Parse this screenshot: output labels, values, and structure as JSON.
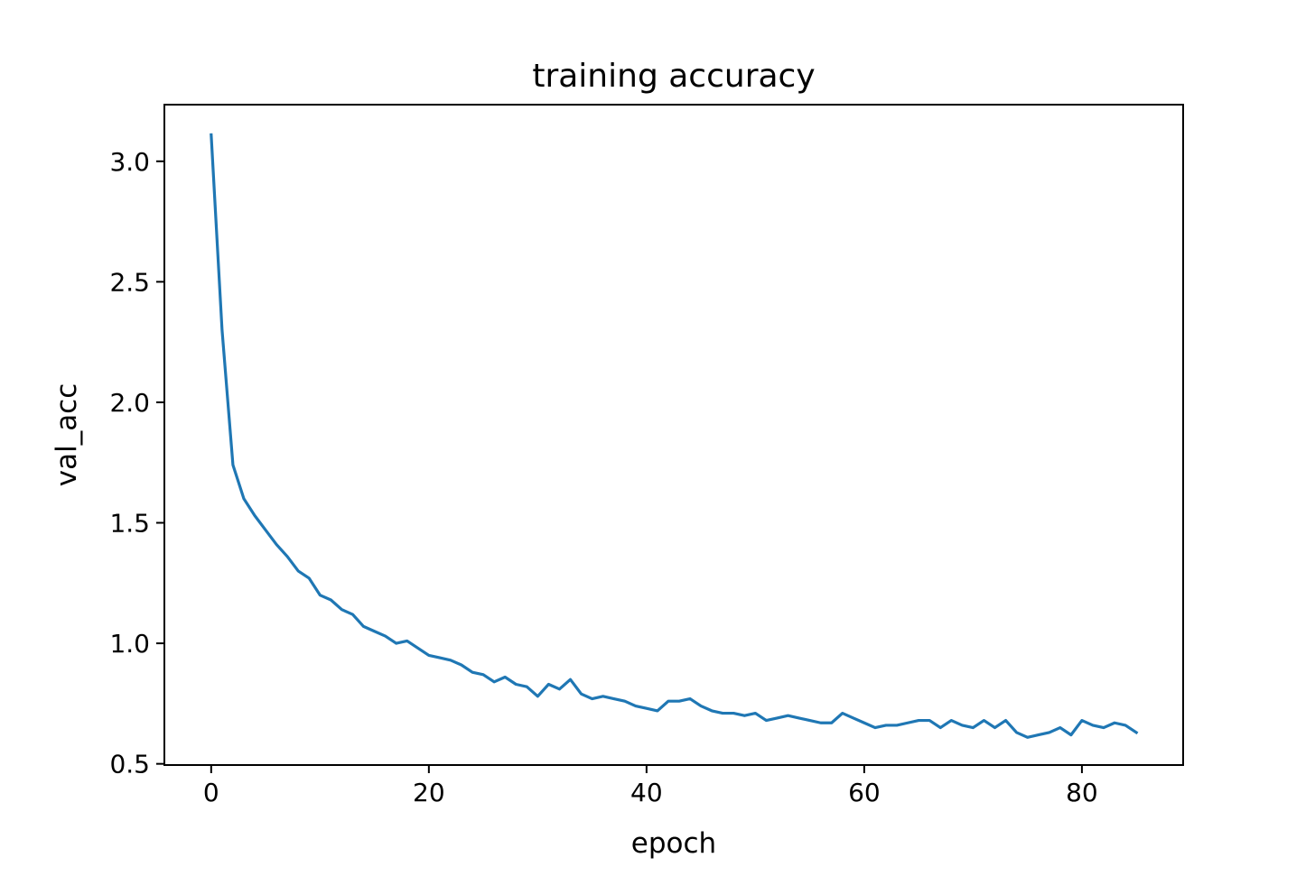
{
  "chart_data": {
    "type": "line",
    "title": "training accuracy",
    "xlabel": "epoch",
    "ylabel": "val_acc",
    "xlim": [
      -4.3,
      89.3
    ],
    "ylim": [
      0.495,
      3.235
    ],
    "xticks": [
      0,
      20,
      40,
      60,
      80
    ],
    "yticks": [
      0.5,
      1.0,
      1.5,
      2.0,
      2.5,
      3.0
    ],
    "grid": false,
    "legend": "none",
    "series": [
      {
        "color": "#1f77b4",
        "x": [
          0,
          1,
          2,
          3,
          4,
          5,
          6,
          7,
          8,
          9,
          10,
          11,
          12,
          13,
          14,
          15,
          16,
          17,
          18,
          19,
          20,
          21,
          22,
          23,
          24,
          25,
          26,
          27,
          28,
          29,
          30,
          31,
          32,
          33,
          34,
          35,
          36,
          37,
          38,
          39,
          40,
          41,
          42,
          43,
          44,
          45,
          46,
          47,
          48,
          49,
          50,
          51,
          52,
          53,
          54,
          55,
          56,
          57,
          58,
          59,
          60,
          61,
          62,
          63,
          64,
          65,
          66,
          67,
          68,
          69,
          70,
          71,
          72,
          73,
          74,
          75,
          76,
          77,
          78,
          79,
          80,
          81,
          82,
          83,
          84,
          85
        ],
        "values": [
          3.11,
          2.3,
          1.74,
          1.6,
          1.53,
          1.47,
          1.41,
          1.36,
          1.3,
          1.27,
          1.2,
          1.18,
          1.14,
          1.12,
          1.07,
          1.05,
          1.03,
          1.0,
          1.01,
          0.98,
          0.95,
          0.94,
          0.93,
          0.91,
          0.88,
          0.87,
          0.84,
          0.86,
          0.83,
          0.82,
          0.78,
          0.83,
          0.81,
          0.85,
          0.79,
          0.77,
          0.78,
          0.77,
          0.76,
          0.74,
          0.73,
          0.72,
          0.76,
          0.76,
          0.77,
          0.74,
          0.72,
          0.71,
          0.71,
          0.7,
          0.71,
          0.68,
          0.69,
          0.7,
          0.69,
          0.68,
          0.67,
          0.67,
          0.71,
          0.69,
          0.67,
          0.65,
          0.66,
          0.66,
          0.67,
          0.68,
          0.68,
          0.65,
          0.68,
          0.66,
          0.65,
          0.68,
          0.65,
          0.68,
          0.63,
          0.61,
          0.62,
          0.63,
          0.65,
          0.62,
          0.68,
          0.66,
          0.65,
          0.67,
          0.66,
          0.63
        ]
      }
    ]
  }
}
